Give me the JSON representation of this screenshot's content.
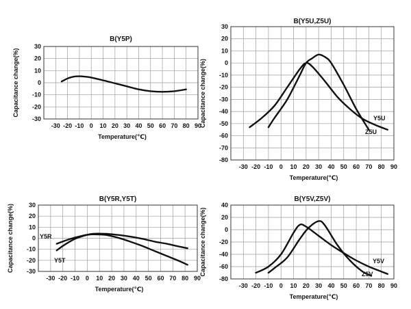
{
  "chart_data": [
    {
      "type": "line",
      "title": "B(Y5P)",
      "xlabel": "Temperature(℃)",
      "ylabel": "Capacitance change(%)",
      "xlim": [
        -40,
        90
      ],
      "ylim": [
        -30,
        30
      ],
      "xticks": [
        -30,
        -20,
        -10,
        0,
        10,
        20,
        30,
        40,
        50,
        60,
        70,
        80,
        90
      ],
      "yticks": [
        30,
        20,
        10,
        0,
        -10,
        -20,
        -30
      ],
      "series": [
        {
          "name": "",
          "color": "#111111",
          "x": [
            -25,
            -20,
            -15,
            -10,
            -5,
            0,
            10,
            20,
            30,
            40,
            50,
            60,
            70,
            80
          ],
          "y": [
            1,
            3.5,
            5,
            5.3,
            5,
            4.3,
            2,
            -0.5,
            -3,
            -5.5,
            -7,
            -7.5,
            -7,
            -5.5
          ]
        }
      ]
    },
    {
      "type": "line",
      "title": "B(Y5U,Z5U)",
      "xlabel": "Temperature(℃)",
      "ylabel": "Capacitance change(%)",
      "xlim": [
        -40,
        90
      ],
      "ylim": [
        -80,
        30
      ],
      "xticks": [
        -30,
        -20,
        -10,
        0,
        10,
        20,
        30,
        40,
        50,
        60,
        70,
        80,
        90
      ],
      "yticks": [
        30,
        20,
        10,
        0,
        -10,
        -20,
        -30,
        -40,
        -50,
        -60,
        -70,
        -80
      ],
      "series": [
        {
          "name": "Y5U",
          "color": "#111111",
          "x": [
            -25,
            -15,
            -5,
            5,
            15,
            20,
            25,
            35,
            45,
            55,
            65,
            75,
            85
          ],
          "y": [
            -53,
            -45,
            -35,
            -20,
            -5,
            0,
            -3,
            -15,
            -28,
            -38,
            -46,
            -51,
            -55
          ]
        },
        {
          "name": "Z5U",
          "color": "#111111",
          "x": [
            -10,
            -5,
            5,
            15,
            20,
            25,
            30,
            35,
            40,
            50,
            60,
            70
          ],
          "y": [
            -53,
            -45,
            -30,
            -10,
            0,
            4,
            7,
            5,
            0,
            -18,
            -38,
            -55
          ]
        }
      ]
    },
    {
      "type": "line",
      "title": "B(Y5R,Y5T)",
      "xlabel": "Temperature(℃)",
      "ylabel": "Capacitance change(%)",
      "xlim": [
        -40,
        90
      ],
      "ylim": [
        -30,
        30
      ],
      "xticks": [
        -30,
        -20,
        -10,
        0,
        10,
        20,
        30,
        40,
        50,
        60,
        70,
        80,
        90
      ],
      "yticks": [
        30,
        20,
        10,
        0,
        -10,
        -20,
        -30
      ],
      "series": [
        {
          "name": "Y5R",
          "color": "#111111",
          "x": [
            -25,
            -15,
            -5,
            5,
            15,
            25,
            35,
            45,
            55,
            65,
            75,
            82
          ],
          "y": [
            -5,
            -1,
            2,
            4,
            4,
            3,
            1.5,
            -0.5,
            -3,
            -5,
            -7.5,
            -9
          ]
        },
        {
          "name": "Y5T",
          "color": "#111111",
          "x": [
            -25,
            -20,
            -15,
            -10,
            -5,
            0,
            5,
            15,
            25,
            35,
            45,
            55,
            65,
            75,
            82
          ],
          "y": [
            -11,
            -7,
            -3.5,
            -0.5,
            1.5,
            3,
            3.5,
            3,
            0.5,
            -3,
            -7,
            -11.5,
            -16,
            -20.5,
            -24
          ]
        }
      ]
    },
    {
      "type": "line",
      "title": "B(Y5V,Z5V)",
      "xlabel": "Temperature(℃)",
      "ylabel": "Capacitance change(%)",
      "xlim": [
        -40,
        90
      ],
      "ylim": [
        -80,
        40
      ],
      "xticks": [
        -30,
        -20,
        -10,
        0,
        10,
        20,
        30,
        40,
        50,
        60,
        70,
        80,
        90
      ],
      "yticks": [
        40,
        20,
        0,
        -20,
        -40,
        -60,
        -80
      ],
      "series": [
        {
          "name": "Y5V",
          "color": "#111111",
          "x": [
            -20,
            -10,
            0,
            10,
            15,
            20,
            30,
            40,
            50,
            60,
            70,
            80,
            85
          ],
          "y": [
            -70,
            -60,
            -40,
            -5,
            8,
            5,
            -10,
            -25,
            -38,
            -50,
            -60,
            -68,
            -72
          ]
        },
        {
          "name": "Z5V",
          "color": "#111111",
          "x": [
            -10,
            -5,
            5,
            15,
            22,
            30,
            35,
            45,
            55,
            65,
            72
          ],
          "y": [
            -70,
            -62,
            -45,
            -15,
            3,
            14,
            7,
            -25,
            -50,
            -68,
            -75
          ]
        }
      ]
    }
  ]
}
